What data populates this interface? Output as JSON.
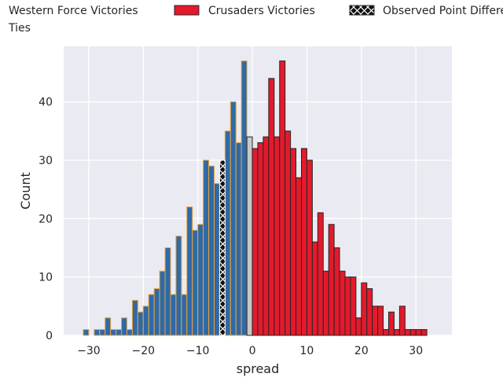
{
  "chart_data": {
    "type": "bar",
    "xlabel": "spread",
    "ylabel": "Count",
    "xlim": [
      -34.6,
      36.6
    ],
    "ylim": [
      0,
      49.5
    ],
    "xticks": [
      -30,
      -20,
      -10,
      0,
      10,
      20,
      30
    ],
    "yticks": [
      0,
      10,
      20,
      30,
      40
    ],
    "xtick_labels": [
      "−30",
      "−20",
      "−10",
      "0",
      "10",
      "20",
      "30"
    ],
    "ytick_labels": [
      "0",
      "10",
      "20",
      "30",
      "40"
    ],
    "grid": true,
    "legend": {
      "placement": "top",
      "entries": [
        {
          "label": "Western Force Victories",
          "color": "#2f6aa8",
          "edge": "#e8a33a",
          "pattern": "solid"
        },
        {
          "label": "Crusaders Victories",
          "color": "#e31a2c",
          "edge": "#262626",
          "pattern": "solid"
        },
        {
          "label": "Observed Point Differential",
          "color": "#111111",
          "edge": "#ffffff",
          "pattern": "hatch-x"
        },
        {
          "label": "Ties",
          "color": "#c8c8c8",
          "edge": "#262626",
          "pattern": "solid"
        }
      ]
    },
    "bin_width": 1,
    "series": [
      {
        "name": "Western Force Victories",
        "color": "#2f6aa8",
        "edge": "#e8a33a",
        "bins": [
          {
            "x": -31,
            "count": 1
          },
          {
            "x": -30,
            "count": 0
          },
          {
            "x": -29,
            "count": 1
          },
          {
            "x": -28,
            "count": 1
          },
          {
            "x": -27,
            "count": 3
          },
          {
            "x": -26,
            "count": 1
          },
          {
            "x": -25,
            "count": 1
          },
          {
            "x": -24,
            "count": 3
          },
          {
            "x": -23,
            "count": 1
          },
          {
            "x": -22,
            "count": 6
          },
          {
            "x": -21,
            "count": 4
          },
          {
            "x": -20,
            "count": 5
          },
          {
            "x": -19,
            "count": 7
          },
          {
            "x": -18,
            "count": 8
          },
          {
            "x": -17,
            "count": 11
          },
          {
            "x": -16,
            "count": 15
          },
          {
            "x": -15,
            "count": 7
          },
          {
            "x": -14,
            "count": 17
          },
          {
            "x": -13,
            "count": 7
          },
          {
            "x": -12,
            "count": 22
          },
          {
            "x": -11,
            "count": 18
          },
          {
            "x": -10,
            "count": 19
          },
          {
            "x": -9,
            "count": 30
          },
          {
            "x": -8,
            "count": 29
          },
          {
            "x": -7,
            "count": 26
          },
          {
            "x": -5,
            "count": 35
          },
          {
            "x": -4,
            "count": 40
          },
          {
            "x": -3,
            "count": 33
          },
          {
            "x": -2,
            "count": 47
          }
        ]
      },
      {
        "name": "Observed Point Differential",
        "color": "#111111",
        "edge": "#ffffff",
        "bins": [
          {
            "x": -6,
            "count": 30
          }
        ]
      },
      {
        "name": "Ties",
        "color": "#c8c8c8",
        "edge": "#262626",
        "bins": [
          {
            "x": -1,
            "count": 34
          }
        ]
      },
      {
        "name": "Crusaders Victories",
        "color": "#e31a2c",
        "edge": "#262626",
        "bins": [
          {
            "x": 0,
            "count": 32
          },
          {
            "x": 1,
            "count": 33
          },
          {
            "x": 2,
            "count": 34
          },
          {
            "x": 3,
            "count": 44
          },
          {
            "x": 4,
            "count": 34
          },
          {
            "x": 5,
            "count": 47
          },
          {
            "x": 6,
            "count": 35
          },
          {
            "x": 7,
            "count": 32
          },
          {
            "x": 8,
            "count": 27
          },
          {
            "x": 9,
            "count": 32
          },
          {
            "x": 10,
            "count": 30
          },
          {
            "x": 11,
            "count": 16
          },
          {
            "x": 12,
            "count": 21
          },
          {
            "x": 13,
            "count": 11
          },
          {
            "x": 14,
            "count": 19
          },
          {
            "x": 15,
            "count": 15
          },
          {
            "x": 16,
            "count": 11
          },
          {
            "x": 17,
            "count": 10
          },
          {
            "x": 18,
            "count": 10
          },
          {
            "x": 19,
            "count": 3
          },
          {
            "x": 20,
            "count": 9
          },
          {
            "x": 21,
            "count": 8
          },
          {
            "x": 22,
            "count": 5
          },
          {
            "x": 23,
            "count": 5
          },
          {
            "x": 24,
            "count": 1
          },
          {
            "x": 25,
            "count": 4
          },
          {
            "x": 26,
            "count": 1
          },
          {
            "x": 27,
            "count": 5
          },
          {
            "x": 28,
            "count": 1
          },
          {
            "x": 29,
            "count": 1
          },
          {
            "x": 30,
            "count": 1
          },
          {
            "x": 31,
            "count": 1
          }
        ]
      }
    ]
  }
}
